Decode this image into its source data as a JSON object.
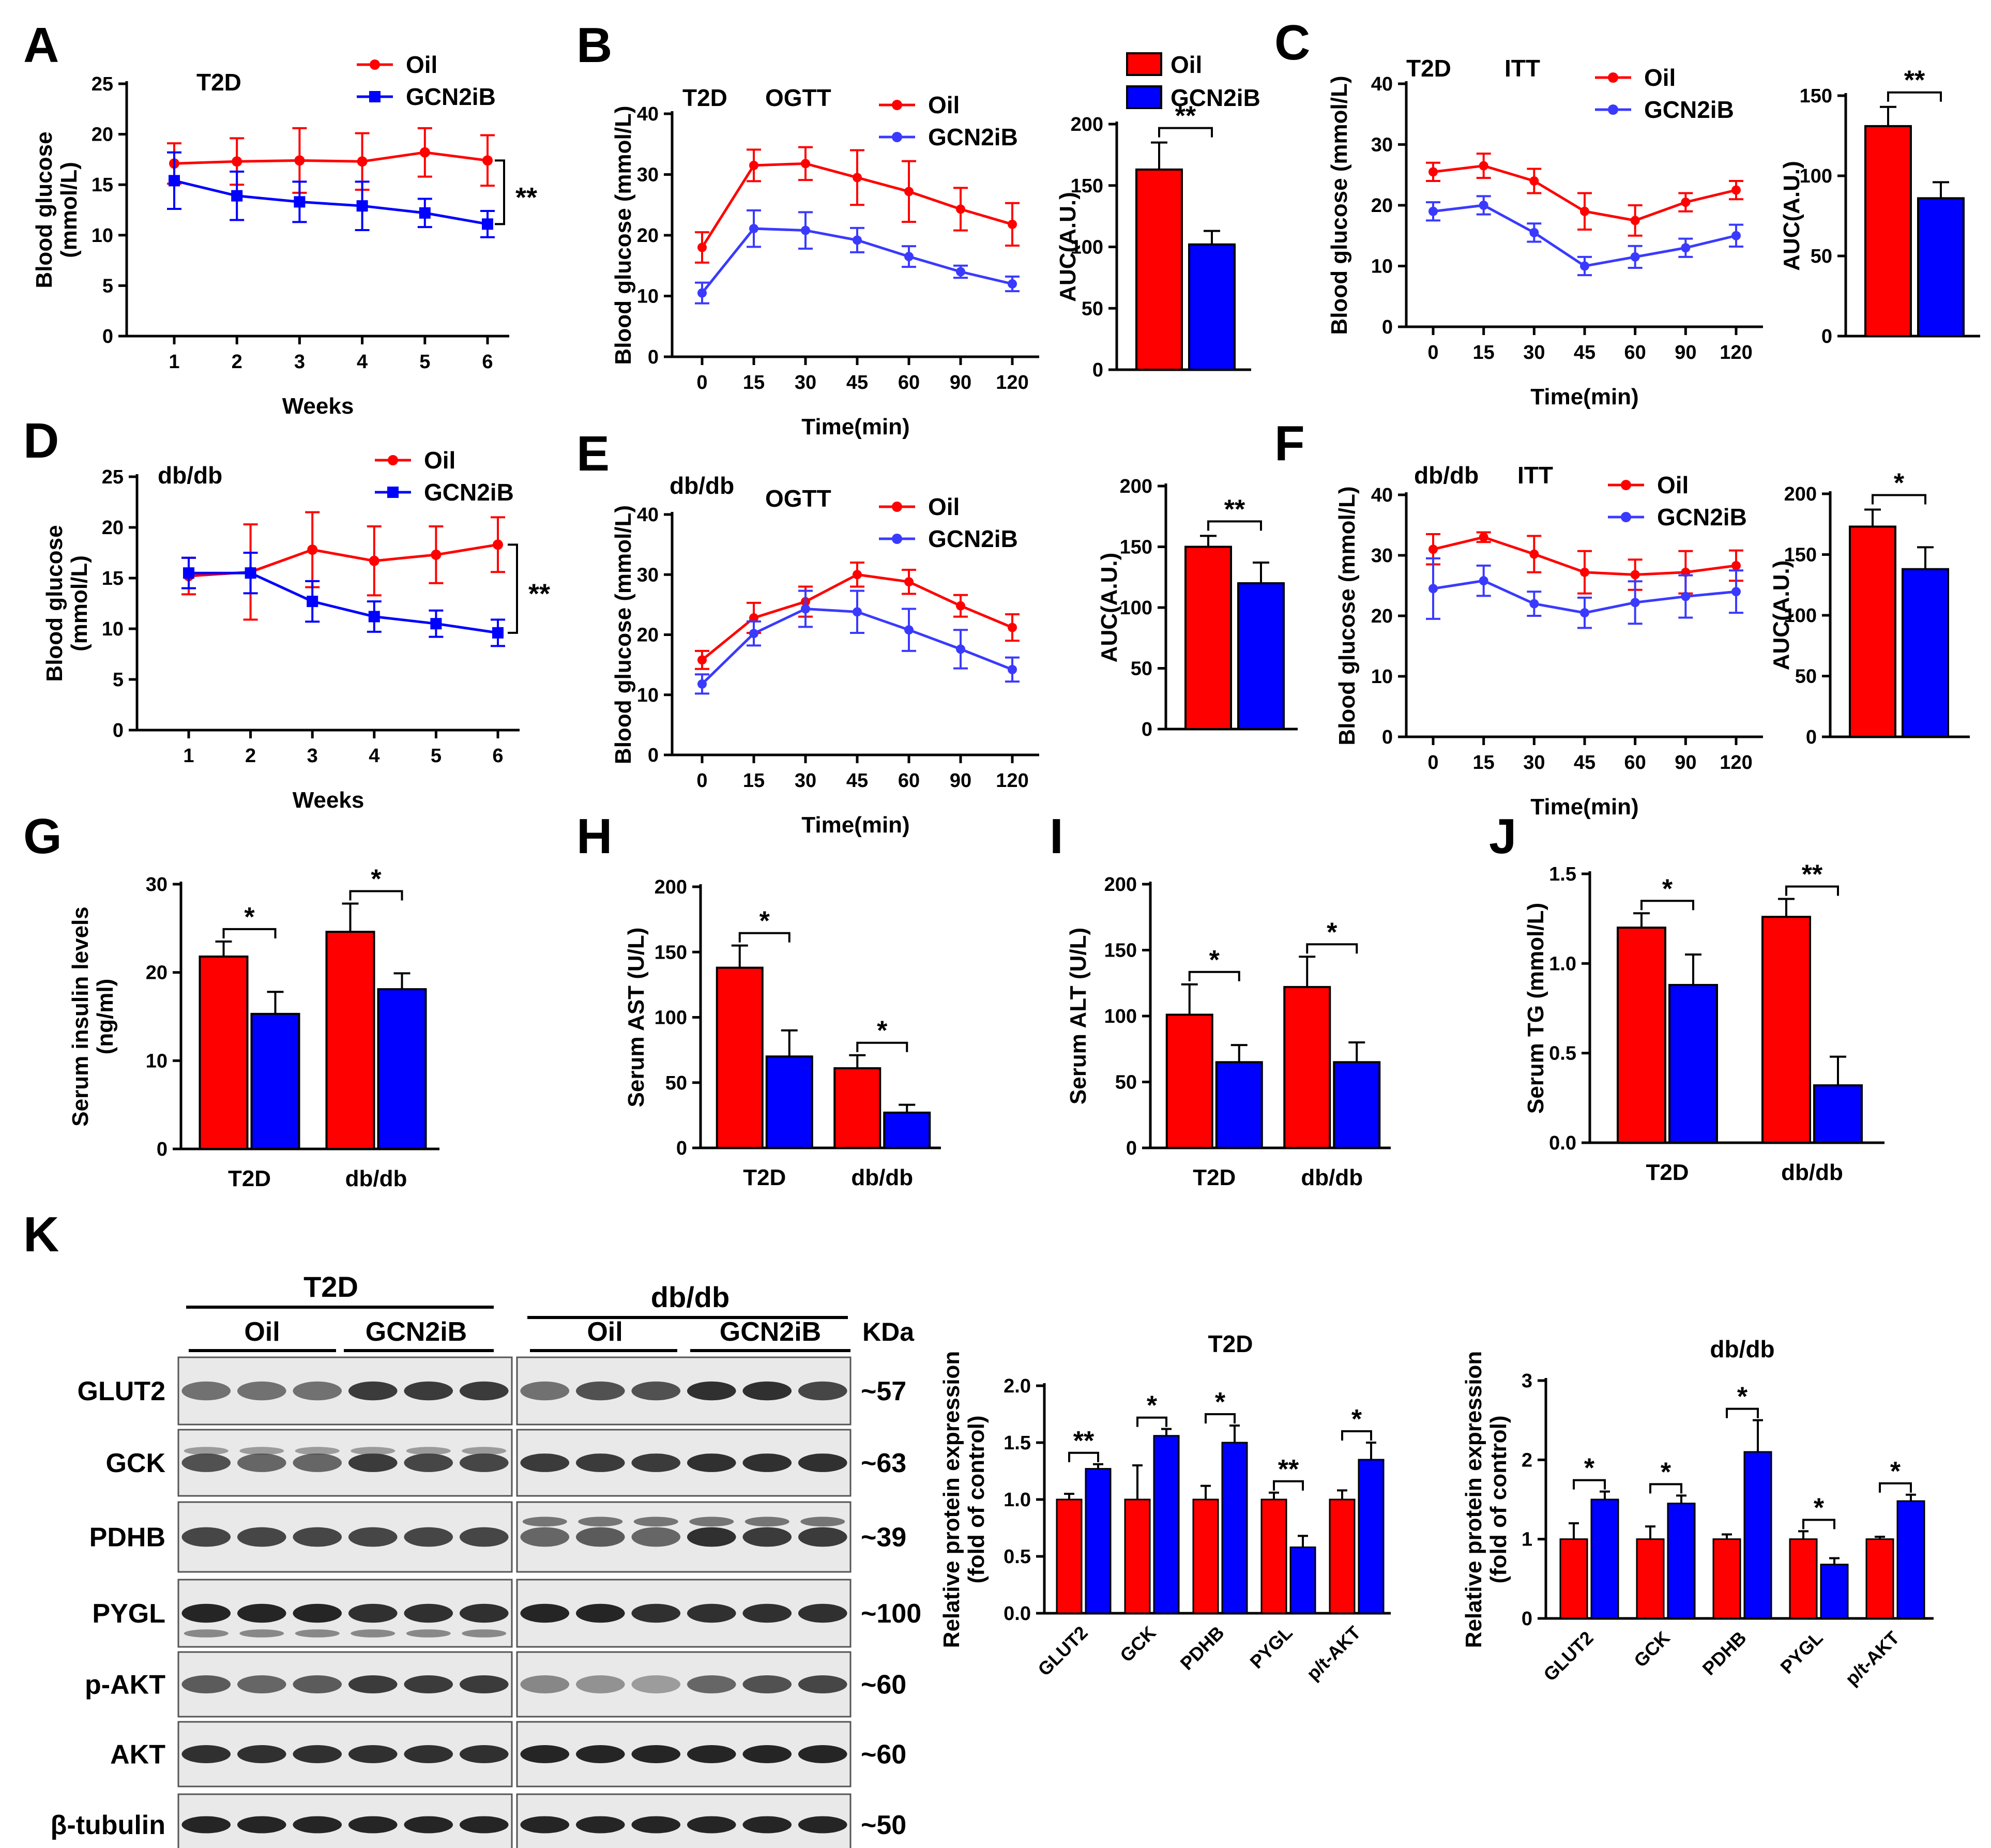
{
  "colors": {
    "oil": "#ff0000",
    "gcn": "#0000ff",
    "gcnLine": "#3a3aff",
    "axis": "#000000"
  },
  "figure": {
    "panel_letters": [
      "A",
      "B",
      "C",
      "D",
      "E",
      "F",
      "G",
      "H",
      "I",
      "J",
      "K"
    ],
    "legend": {
      "oil": "Oil",
      "gcn": "GCN2iB"
    }
  },
  "chart_data": [
    {
      "id": "A",
      "type": "line",
      "title": "T2D",
      "xlabel": "Weeks",
      "ylabel": "Blood glucose (mmol/L)",
      "categories": [
        "1",
        "2",
        "3",
        "4",
        "5",
        "6"
      ],
      "ylim": [
        0,
        25
      ],
      "yticks": [
        0,
        5,
        10,
        15,
        20,
        25
      ],
      "series": [
        {
          "name": "Oil",
          "values": [
            17.1,
            17.3,
            17.4,
            17.3,
            18.2,
            17.4
          ],
          "err": [
            2.0,
            2.3,
            3.2,
            2.8,
            2.4,
            2.5
          ]
        },
        {
          "name": "GCN2iB",
          "values": [
            15.4,
            13.9,
            13.3,
            12.9,
            12.2,
            11.1
          ],
          "err": [
            2.8,
            2.4,
            2.0,
            2.4,
            1.4,
            1.3
          ]
        }
      ],
      "significance": "**"
    },
    {
      "id": "B",
      "type": "line",
      "title": "T2D",
      "subtitle": "OGTT",
      "xlabel": "Time(min)",
      "ylabel": "Blood glucose (mmol/L)",
      "categories": [
        "0",
        "15",
        "30",
        "45",
        "60",
        "90",
        "120"
      ],
      "ylim": [
        0,
        40
      ],
      "yticks": [
        0,
        10,
        20,
        30,
        40
      ],
      "series": [
        {
          "name": "Oil",
          "values": [
            18,
            31.5,
            31.8,
            29.5,
            27.2,
            24.3,
            21.8
          ],
          "err": [
            2.5,
            2.6,
            2.7,
            4.5,
            5.0,
            3.5,
            3.5
          ]
        },
        {
          "name": "GCN2iB",
          "values": [
            10.5,
            21.1,
            20.8,
            19.2,
            16.5,
            14,
            12
          ],
          "err": [
            1.7,
            3.0,
            3.0,
            2.0,
            1.7,
            1.0,
            1.2
          ]
        }
      ]
    },
    {
      "id": "B-AUC",
      "type": "bar",
      "ylabel": "AUC(A.U.)",
      "ylim": [
        0,
        200
      ],
      "yticks": [
        0,
        50,
        100,
        150,
        200
      ],
      "series": [
        {
          "name": "Oil",
          "value": 163,
          "err": 22
        },
        {
          "name": "GCN2iB",
          "value": 102,
          "err": 11
        }
      ],
      "significance": "**"
    },
    {
      "id": "C",
      "type": "line",
      "title": "T2D",
      "subtitle": "ITT",
      "xlabel": "Time(min)",
      "ylabel": "Blood glucose (mmol/L)",
      "categories": [
        "0",
        "15",
        "30",
        "45",
        "60",
        "90",
        "120"
      ],
      "ylim": [
        0,
        40
      ],
      "yticks": [
        0,
        10,
        20,
        30,
        40
      ],
      "series": [
        {
          "name": "Oil",
          "values": [
            25.5,
            26.5,
            24,
            19,
            17.5,
            20.5,
            22.5
          ],
          "err": [
            1.5,
            2.0,
            2.0,
            3.0,
            2.5,
            1.5,
            1.5
          ]
        },
        {
          "name": "GCN2iB",
          "values": [
            19,
            20,
            15.5,
            10,
            11.5,
            13,
            15
          ],
          "err": [
            1.5,
            1.5,
            1.5,
            1.5,
            1.8,
            1.5,
            1.8
          ]
        }
      ]
    },
    {
      "id": "C-AUC",
      "type": "bar",
      "ylabel": "AUC(A.U.)",
      "ylim": [
        0,
        150
      ],
      "yticks": [
        0,
        50,
        100,
        150
      ],
      "series": [
        {
          "name": "Oil",
          "value": 131,
          "err": 12
        },
        {
          "name": "GCN2iB",
          "value": 86,
          "err": 10
        }
      ],
      "significance": "**"
    },
    {
      "id": "D",
      "type": "line",
      "title": "db/db",
      "xlabel": "Weeks",
      "ylabel": "Blood glucose (mmol/L)",
      "categories": [
        "1",
        "2",
        "3",
        "4",
        "5",
        "6"
      ],
      "ylim": [
        0,
        25
      ],
      "yticks": [
        0,
        5,
        10,
        15,
        20,
        25
      ],
      "series": [
        {
          "name": "Oil",
          "values": [
            15.2,
            15.6,
            17.8,
            16.7,
            17.3,
            18.3
          ],
          "err": [
            1.8,
            4.7,
            3.7,
            3.4,
            2.8,
            2.7
          ]
        },
        {
          "name": "GCN2iB",
          "values": [
            15.5,
            15.5,
            12.7,
            11.2,
            10.5,
            9.6
          ],
          "err": [
            1.5,
            2.0,
            2.0,
            1.5,
            1.3,
            1.3
          ]
        }
      ],
      "significance": "**"
    },
    {
      "id": "E",
      "type": "line",
      "title": "db/db",
      "subtitle": "OGTT",
      "xlabel": "Time(min)",
      "ylabel": "Blood glucose (mmol/L)",
      "categories": [
        "0",
        "15",
        "30",
        "45",
        "60",
        "90",
        "120"
      ],
      "ylim": [
        0,
        40
      ],
      "yticks": [
        0,
        10,
        20,
        30,
        40
      ],
      "series": [
        {
          "name": "Oil",
          "values": [
            15.8,
            22.8,
            25.5,
            30,
            28.8,
            24.8,
            21.2
          ],
          "err": [
            1.5,
            2.5,
            2.5,
            2.0,
            2.0,
            1.8,
            2.2
          ]
        },
        {
          "name": "GCN2iB",
          "values": [
            11.8,
            20.2,
            24.3,
            23.8,
            20.8,
            17.6,
            14.2
          ],
          "err": [
            1.6,
            2.0,
            3.0,
            3.5,
            3.5,
            3.2,
            2.0
          ]
        }
      ]
    },
    {
      "id": "E-AUC",
      "type": "bar",
      "ylabel": "AUC(A.U.)",
      "ylim": [
        0,
        200
      ],
      "yticks": [
        0,
        50,
        100,
        150,
        200
      ],
      "series": [
        {
          "name": "Oil",
          "value": 150,
          "err": 9
        },
        {
          "name": "GCN2iB",
          "value": 120,
          "err": 17
        }
      ],
      "significance": "**"
    },
    {
      "id": "F",
      "type": "line",
      "title": "db/db",
      "subtitle": "ITT",
      "xlabel": "Time(min)",
      "ylabel": "Blood glucose (mmol/L)",
      "categories": [
        "0",
        "15",
        "30",
        "45",
        "60",
        "90",
        "120"
      ],
      "ylim": [
        0,
        40
      ],
      "yticks": [
        0,
        10,
        20,
        30,
        40
      ],
      "series": [
        {
          "name": "Oil",
          "values": [
            31,
            33,
            30.2,
            27.2,
            26.8,
            27.2,
            28.3
          ],
          "err": [
            2.5,
            0.8,
            3.0,
            3.5,
            2.5,
            3.5,
            2.5
          ]
        },
        {
          "name": "GCN2iB",
          "values": [
            24.5,
            25.8,
            22,
            20.5,
            22.2,
            23.2,
            24
          ],
          "err": [
            5.0,
            2.5,
            2.0,
            2.5,
            3.5,
            3.5,
            3.5
          ]
        }
      ]
    },
    {
      "id": "F-AUC",
      "type": "bar",
      "ylabel": "AUC(A.U.)",
      "ylim": [
        0,
        200
      ],
      "yticks": [
        0,
        50,
        100,
        150,
        200
      ],
      "series": [
        {
          "name": "Oil",
          "value": 173,
          "err": 14
        },
        {
          "name": "GCN2iB",
          "value": 138,
          "err": 18
        }
      ],
      "significance": "*"
    },
    {
      "id": "G",
      "type": "bar",
      "ylabel": "Serum insulin levels (ng/ml)",
      "categories": [
        "T2D",
        "db/db"
      ],
      "ylim": [
        0,
        30
      ],
      "yticks": [
        0,
        10,
        20,
        30
      ],
      "series": [
        {
          "name": "Oil",
          "values": [
            21.8,
            24.6
          ],
          "err": [
            1.7,
            3.2
          ]
        },
        {
          "name": "GCN2iB",
          "values": [
            15.3,
            18.1
          ],
          "err": [
            2.5,
            1.8
          ]
        }
      ],
      "significance": [
        "*",
        "*"
      ]
    },
    {
      "id": "H",
      "type": "bar",
      "ylabel": "Serum AST (U/L)",
      "categories": [
        "T2D",
        "db/db"
      ],
      "ylim": [
        0,
        200
      ],
      "yticks": [
        0,
        50,
        100,
        150,
        200
      ],
      "series": [
        {
          "name": "Oil",
          "values": [
            138,
            61
          ],
          "err": [
            17,
            10
          ]
        },
        {
          "name": "GCN2iB",
          "values": [
            70,
            27
          ],
          "err": [
            20,
            6
          ]
        }
      ],
      "significance": [
        "*",
        "*"
      ]
    },
    {
      "id": "I",
      "type": "bar",
      "ylabel": "Serum ALT (U/L)",
      "categories": [
        "T2D",
        "db/db"
      ],
      "ylim": [
        0,
        200
      ],
      "yticks": [
        0,
        50,
        100,
        150,
        200
      ],
      "series": [
        {
          "name": "Oil",
          "values": [
            101,
            122
          ],
          "err": [
            23,
            23
          ]
        },
        {
          "name": "GCN2iB",
          "values": [
            65,
            65
          ],
          "err": [
            13,
            15
          ]
        }
      ],
      "significance": [
        "*",
        "*"
      ]
    },
    {
      "id": "J",
      "type": "bar",
      "ylabel": "Serum TG (mmol/L)",
      "categories": [
        "T2D",
        "db/db"
      ],
      "ylim": [
        0,
        1.5
      ],
      "yticks": [
        "0.0",
        "0.5",
        "1.0",
        "1.5"
      ],
      "series": [
        {
          "name": "Oil",
          "values": [
            1.2,
            1.26
          ],
          "err": [
            0.08,
            0.1
          ]
        },
        {
          "name": "GCN2iB",
          "values": [
            0.88,
            0.32
          ],
          "err": [
            0.17,
            0.16
          ]
        }
      ],
      "significance": [
        "*",
        "**"
      ]
    },
    {
      "id": "K-T2D",
      "type": "bar",
      "title": "T2D",
      "ylabel": "Relative protein expression (fold of control)",
      "categories": [
        "GLUT2",
        "GCK",
        "PDHB",
        "PYGL",
        "p/t-AKT"
      ],
      "ylim": [
        0,
        2.0
      ],
      "yticks": [
        "0.0",
        "0.5",
        "1.0",
        "1.5",
        "2.0"
      ],
      "series": [
        {
          "name": "Oil",
          "values": [
            1,
            1,
            1,
            1,
            1
          ],
          "err": [
            0.05,
            0.3,
            0.12,
            0.06,
            0.08
          ]
        },
        {
          "name": "GCN2iB",
          "values": [
            1.27,
            1.56,
            1.5,
            0.58,
            1.35
          ],
          "err": [
            0.04,
            0.06,
            0.15,
            0.1,
            0.15
          ]
        }
      ],
      "significance": [
        "**",
        "*",
        "*",
        "**",
        "*"
      ]
    },
    {
      "id": "K-dbdb",
      "type": "bar",
      "title": "db/db",
      "ylabel": "Relative protein expression (fold of control)",
      "categories": [
        "GLUT2",
        "GCK",
        "PDHB",
        "PYGL",
        "p/t-AKT"
      ],
      "ylim": [
        0,
        3
      ],
      "yticks": [
        "0",
        "1",
        "2",
        "3"
      ],
      "series": [
        {
          "name": "Oil",
          "values": [
            1,
            1,
            1,
            1,
            1
          ],
          "err": [
            0.2,
            0.16,
            0.06,
            0.1,
            0.03
          ]
        },
        {
          "name": "GCN2iB",
          "values": [
            1.5,
            1.45,
            2.1,
            0.68,
            1.48
          ],
          "err": [
            0.1,
            0.1,
            0.4,
            0.08,
            0.08
          ]
        }
      ],
      "significance": [
        "*",
        "*",
        "*",
        "*",
        "*"
      ]
    }
  ],
  "western": {
    "panel_T2D": "T2D",
    "panel_dbdb": "db/db",
    "oil": "Oil",
    "gcn": "GCN2iB",
    "kda": "KDa",
    "rows": [
      {
        "label": "GLUT2",
        "kda": "~57"
      },
      {
        "label": "GCK",
        "kda": "~63"
      },
      {
        "label": "PDHB",
        "kda": "~39"
      },
      {
        "label": "PYGL",
        "kda": "~100"
      },
      {
        "label": "p-AKT",
        "kda": "~60"
      },
      {
        "label": "AKT",
        "kda": "~60"
      },
      {
        "label": "β-tubulin",
        "kda": "~50"
      }
    ]
  }
}
